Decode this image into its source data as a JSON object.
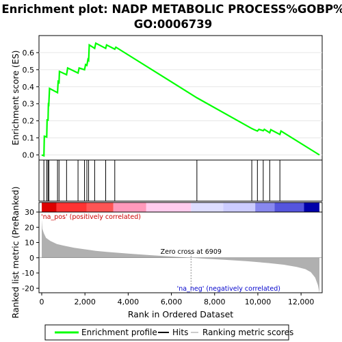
{
  "chart_data": {
    "type": "line",
    "title_line1": "Enrichment plot: NADP METABOLIC PROCESS%GOBP%",
    "title_line2": "GO:0006739",
    "es_panel": {
      "ylabel": "Enrichment score (ES)",
      "ylim": [
        -0.03,
        0.7
      ],
      "yticks": [
        "0.0",
        "0.1",
        "0.2",
        "0.3",
        "0.4",
        "0.5",
        "0.6"
      ],
      "ytick_values": [
        0,
        0.1,
        0.2,
        0.3,
        0.4,
        0.5,
        0.6
      ],
      "series": [
        {
          "name": "Enrichment profile",
          "color": "#00cc00",
          "x": [
            0,
            100,
            120,
            230,
            250,
            290,
            310,
            330,
            360,
            730,
            760,
            800,
            820,
            1150,
            1200,
            1680,
            1730,
            1980,
            2030,
            2090,
            2140,
            2170,
            2200,
            2450,
            2500,
            2960,
            3000,
            3380,
            3430,
            7180,
            9720,
            9800,
            9980,
            10050,
            10250,
            10300,
            10550,
            10600,
            11020,
            11070,
            12850
          ],
          "y": [
            0,
            -0.005,
            0.11,
            0.105,
            0.21,
            0.2,
            0.305,
            0.3,
            0.39,
            0.365,
            0.43,
            0.425,
            0.49,
            0.47,
            0.51,
            0.48,
            0.51,
            0.5,
            0.53,
            0.525,
            0.56,
            0.555,
            0.645,
            0.625,
            0.655,
            0.625,
            0.645,
            0.62,
            0.632,
            0.335,
            0.155,
            0.15,
            0.14,
            0.15,
            0.142,
            0.15,
            0.13,
            0.148,
            0.12,
            0.14,
            0.0
          ]
        }
      ]
    },
    "hits": [
      100,
      230,
      290,
      330,
      730,
      800,
      1150,
      1680,
      1980,
      2090,
      2170,
      2450,
      2960,
      3380,
      7180,
      9720,
      9980,
      10250,
      10550,
      11020
    ],
    "rank_panel": {
      "ylabel": "Ranked list metric (PreRanked)",
      "xlabel": "Rank in Ordered Dataset",
      "ylim": [
        -23,
        30
      ],
      "yticks": [
        "30",
        "20",
        "10",
        "0",
        "-10",
        "-20"
      ],
      "ytick_values": [
        30,
        20,
        10,
        0,
        -10,
        -20
      ],
      "xlim": [
        0,
        12850
      ],
      "xticks": [
        "0",
        "2,000",
        "4,000",
        "6,000",
        "8,000",
        "10,000",
        "12,000"
      ],
      "xtick_values": [
        0,
        2000,
        4000,
        6000,
        8000,
        10000,
        12000
      ],
      "metric_x": [
        0,
        30,
        100,
        200,
        400,
        700,
        1000,
        1500,
        2000,
        2500,
        3000,
        4000,
        5000,
        6000,
        6909,
        7500,
        8500,
        9500,
        10500,
        11200,
        11800,
        12200,
        12450,
        12650,
        12780,
        12850
      ],
      "metric_y": [
        25,
        19,
        16,
        13,
        11,
        9,
        8,
        6.5,
        5.5,
        4.5,
        3.8,
        2.7,
        1.7,
        0.8,
        0,
        -0.6,
        -1.4,
        -2.3,
        -3.5,
        -4.6,
        -6,
        -7.5,
        -9.5,
        -13,
        -18,
        -23
      ],
      "zero_cross_label": "Zero cross at 6909",
      "zero_cross_rank": 6909,
      "pos_label": "'na_pos' (positively correlated)",
      "neg_label": "'na_neg' (negatively correlated)",
      "metric_color": "#b0b0b0",
      "pos_label_color": "#cc0000",
      "neg_label_color": "#0000cc"
    },
    "legend": {
      "items": [
        {
          "label": "Enrichment profile",
          "color": "#00ff00"
        },
        {
          "label": "Hits",
          "color": "#000000"
        },
        {
          "label": "Ranking metric scores",
          "color": "#cccccc"
        }
      ]
    }
  }
}
